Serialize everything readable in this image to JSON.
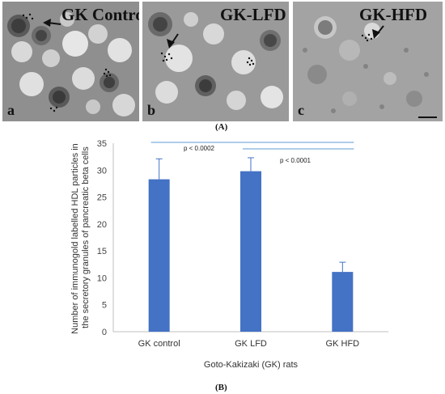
{
  "panels": [
    {
      "title": "GK Control",
      "letter": "a"
    },
    {
      "title": "GK-LFD",
      "letter": "b"
    },
    {
      "title": "GK-HFD",
      "letter": "c"
    }
  ],
  "panel_a_caption": "(A)",
  "panel_b_caption": "(B)",
  "chart_data": {
    "type": "bar",
    "categories": [
      "GK control",
      "GK LFD",
      "GK HFD"
    ],
    "values": [
      28.3,
      29.8,
      11.1
    ],
    "errors": [
      3.8,
      2.5,
      1.8
    ],
    "xlabel": "Goto-Kakizaki (GK) rats",
    "ylabel_lines": [
      "Number of immunogold labelled HDL particles in",
      "the secretory granules of pancreatic beta cells"
    ],
    "ylim": [
      0,
      35
    ],
    "yticks": [
      0,
      5,
      10,
      15,
      20,
      25,
      30,
      35
    ],
    "bar_color": "#4472C4",
    "comparisons": [
      {
        "from": 0,
        "to": 2,
        "label": "p < 0.0002"
      },
      {
        "from": 1,
        "to": 2,
        "label": "p < 0.0001"
      }
    ],
    "comparison_color": "#5B9BD5",
    "grid": false
  }
}
